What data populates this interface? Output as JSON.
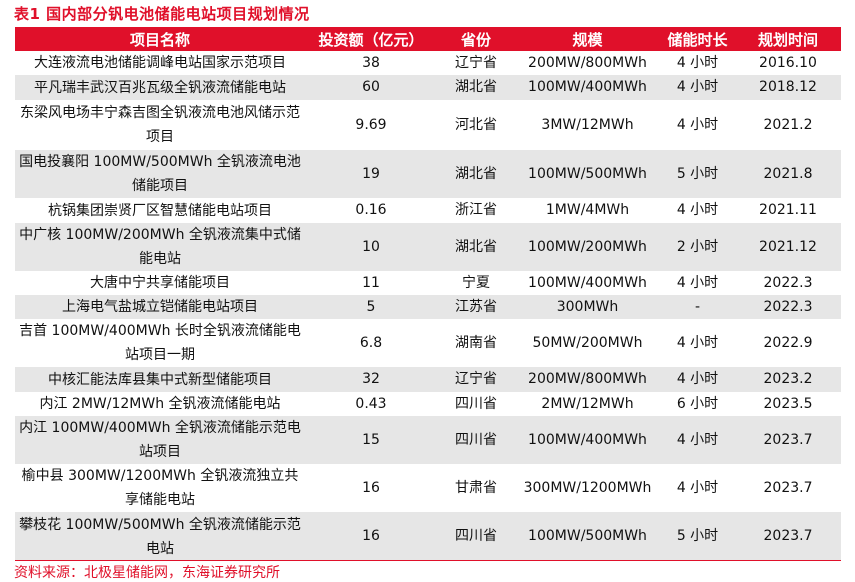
{
  "title": "表1  国内部分钒电池储能电站项目规划情况",
  "colors": {
    "accent": "#e0102a",
    "stripe": "#e6e6e6"
  },
  "table": {
    "headers": [
      "项目名称",
      "投资额（亿元）",
      "省份",
      "规模",
      "储能时长",
      "规划时间"
    ],
    "rows": [
      {
        "name": "大连液流电池储能调峰电站国家示范项目",
        "investment": "38",
        "province": "辽宁省",
        "scale": "200MW/800MWh",
        "duration": "4 小时",
        "time": "2016.10"
      },
      {
        "name": "平凡瑞丰武汉百兆瓦级全钒液流储能电站",
        "investment": "60",
        "province": "湖北省",
        "scale": "100MW/400MWh",
        "duration": "4 小时",
        "time": "2018.12"
      },
      {
        "name": "东梁风电场丰宁森吉图全钒液流电池风储示范项目",
        "investment": "9.69",
        "province": "河北省",
        "scale": "3MW/12MWh",
        "duration": "4 小时",
        "time": "2021.2"
      },
      {
        "name": "国电投襄阳 100MW/500MWh 全钒液流电池储能项目",
        "investment": "19",
        "province": "湖北省",
        "scale": "100MW/500MWh",
        "duration": "5 小时",
        "time": "2021.8"
      },
      {
        "name": "杭锅集团崇贤厂区智慧储能电站项目",
        "investment": "0.16",
        "province": "浙江省",
        "scale": "1MW/4MWh",
        "duration": "4 小时",
        "time": "2021.11"
      },
      {
        "name": "中广核 100MW/200MWh 全钒液流集中式储能电站",
        "investment": "10",
        "province": "湖北省",
        "scale": "100MW/200MWh",
        "duration": "2 小时",
        "time": "2021.12"
      },
      {
        "name": "大唐中宁共享储能项目",
        "investment": "11",
        "province": "宁夏",
        "scale": "100MW/400MWh",
        "duration": "4 小时",
        "time": "2022.3"
      },
      {
        "name": "上海电气盐城立铠储能电站项目",
        "investment": "5",
        "province": "江苏省",
        "scale": "300MWh",
        "duration": "-",
        "time": "2022.3"
      },
      {
        "name": "吉首 100MW/400MWh 长时全钒液流储能电站项目一期",
        "investment": "6.8",
        "province": "湖南省",
        "scale": "50MW/200MWh",
        "duration": "4 小时",
        "time": "2022.9"
      },
      {
        "name": "中核汇能法库县集中式新型储能项目",
        "investment": "32",
        "province": "辽宁省",
        "scale": "200MW/800MWh",
        "duration": "4 小时",
        "time": "2023.2"
      },
      {
        "name": "内江 2MW/12MWh 全钒液流储能电站",
        "investment": "0.43",
        "province": "四川省",
        "scale": "2MW/12MWh",
        "duration": "6 小时",
        "time": "2023.5"
      },
      {
        "name": "内江 100MW/400MWh 全钒液流储能示范电站项目",
        "investment": "15",
        "province": "四川省",
        "scale": "100MW/400MWh",
        "duration": "4 小时",
        "time": "2023.7"
      },
      {
        "name": "榆中县 300MW/1200MWh 全钒液流独立共享储能电站",
        "investment": "16",
        "province": "甘肃省",
        "scale": "300MW/1200MWh",
        "duration": "4 小时",
        "time": "2023.7"
      },
      {
        "name": "攀枝花 100MW/500MWh 全钒液流储能示范电站",
        "investment": "16",
        "province": "四川省",
        "scale": "100MW/500MWh",
        "duration": "5 小时",
        "time": "2023.7"
      }
    ]
  },
  "source": "资料来源：北极星储能网，东海证券研究所"
}
